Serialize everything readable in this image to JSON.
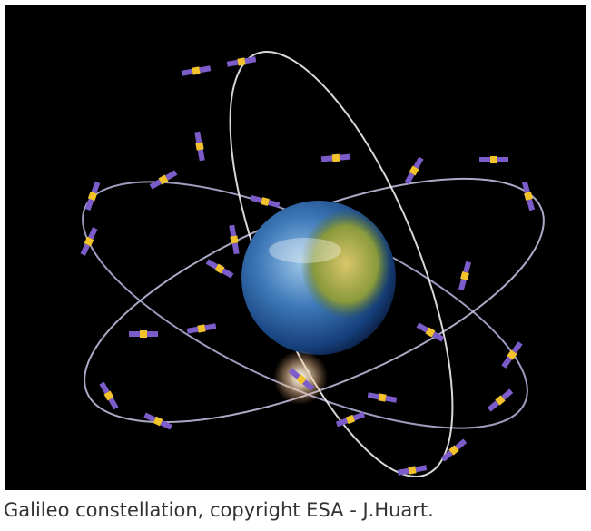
{
  "caption": "Galileo constellation, copyright ESA - J.Huart."
}
